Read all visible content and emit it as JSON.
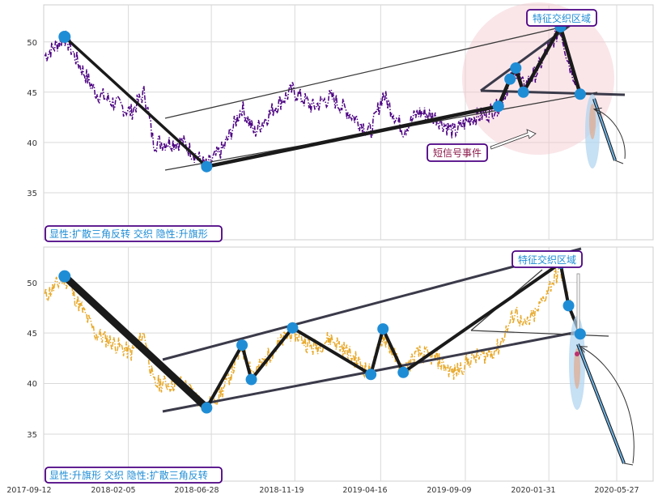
{
  "chart_data": [
    {
      "type": "line",
      "panel": "top",
      "ylim": [
        30,
        53
      ],
      "y_ticks": [
        35,
        40,
        45,
        50
      ],
      "grid": true,
      "series": [
        {
          "name": "",
          "color": "#4b0082",
          "style": "dash-dot"
        }
      ],
      "pattern_points": [
        {
          "date": "2017-10-18",
          "value": 50.5
        },
        {
          "date": "2018-06-20",
          "value": 37.6
        },
        {
          "date": "2019-11-05",
          "value": 43.6
        },
        {
          "date": "2019-11-25",
          "value": 46.3
        },
        {
          "date": "2019-12-05",
          "value": 47.4
        },
        {
          "date": "2019-12-18",
          "value": 45.0
        },
        {
          "date": "2020-02-20",
          "value": 51.5
        },
        {
          "date": "2020-03-25",
          "value": 44.8
        }
      ],
      "annotations": {
        "signal_label": "短信号事件",
        "zone_label": "特征交织区域",
        "legend_text": "显性:扩散三角反转 交织 隐性:升旗形"
      },
      "colors": {
        "line": "#4b0082",
        "marker": "#1f8dd6",
        "pattern": "#1a1a1a",
        "zone": "#f4c7cf",
        "ellipse": "#aed3ef",
        "label_text": "#1f8dd6",
        "label_border": "#4b0082",
        "signal_text": "#8b1a4a"
      }
    },
    {
      "type": "line",
      "panel": "bottom",
      "ylim": [
        30,
        54
      ],
      "y_ticks": [
        35,
        40,
        45,
        50
      ],
      "x_ticks": [
        "2017-09-12",
        "2018-02-05",
        "2018-06-28",
        "2018-11-19",
        "2019-04-16",
        "2019-09-09",
        "2020-01-31",
        "2020-05-27"
      ],
      "grid": true,
      "series": [
        {
          "name": "",
          "color": "#e8a92a",
          "style": "dash-dot"
        }
      ],
      "pattern_points": [
        {
          "date": "2017-10-18",
          "value": 50.6
        },
        {
          "date": "2018-06-20",
          "value": 37.6
        },
        {
          "date": "2018-08-20",
          "value": 43.8
        },
        {
          "date": "2018-09-05",
          "value": 40.4
        },
        {
          "date": "2018-11-15",
          "value": 45.5
        },
        {
          "date": "2019-03-30",
          "value": 40.9
        },
        {
          "date": "2019-04-20",
          "value": 45.4
        },
        {
          "date": "2019-05-25",
          "value": 41.1
        },
        {
          "date": "2020-02-20",
          "value": 51.9
        },
        {
          "date": "2020-03-05",
          "value": 47.7
        },
        {
          "date": "2020-03-25",
          "value": 44.9
        }
      ],
      "annotations": {
        "zone_label": "特征交织区域",
        "legend_text": "显性:升旗形 交织 隐性:扩散三角反转"
      },
      "colors": {
        "line": "#e8a92a",
        "marker": "#1f8dd6",
        "pattern": "#1a1a1a",
        "ellipse": "#aed3ef",
        "label_text": "#1f8dd6",
        "label_border": "#4b0082"
      }
    }
  ]
}
